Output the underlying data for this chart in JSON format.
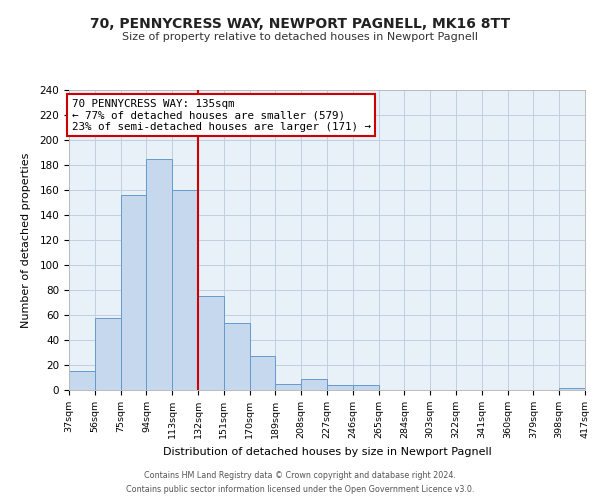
{
  "title": "70, PENNYCRESS WAY, NEWPORT PAGNELL, MK16 8TT",
  "subtitle": "Size of property relative to detached houses in Newport Pagnell",
  "xlabel": "Distribution of detached houses by size in Newport Pagnell",
  "ylabel": "Number of detached properties",
  "bar_edges": [
    37,
    56,
    75,
    94,
    113,
    132,
    151,
    170,
    189,
    208,
    227,
    246,
    265,
    284,
    303,
    322,
    341,
    360,
    379,
    398,
    417
  ],
  "bar_heights": [
    15,
    58,
    156,
    185,
    160,
    75,
    54,
    27,
    5,
    9,
    4,
    4,
    0,
    0,
    0,
    0,
    0,
    0,
    0,
    2
  ],
  "bar_color": "#c5d8ee",
  "bar_edge_color": "#6699cc",
  "vline_x": 132,
  "vline_color": "#cc0000",
  "annotation_line1": "70 PENNYCRESS WAY: 135sqm",
  "annotation_line2": "← 77% of detached houses are smaller (579)",
  "annotation_line3": "23% of semi-detached houses are larger (171) →",
  "annotation_box_color": "#ffffff",
  "annotation_box_edge": "#cc0000",
  "ylim": [
    0,
    240
  ],
  "yticks": [
    0,
    20,
    40,
    60,
    80,
    100,
    120,
    140,
    160,
    180,
    200,
    220,
    240
  ],
  "tick_labels": [
    "37sqm",
    "56sqm",
    "75sqm",
    "94sqm",
    "113sqm",
    "132sqm",
    "151sqm",
    "170sqm",
    "189sqm",
    "208sqm",
    "227sqm",
    "246sqm",
    "265sqm",
    "284sqm",
    "303sqm",
    "322sqm",
    "341sqm",
    "360sqm",
    "379sqm",
    "398sqm",
    "417sqm"
  ],
  "footer_line1": "Contains HM Land Registry data © Crown copyright and database right 2024.",
  "footer_line2": "Contains public sector information licensed under the Open Government Licence v3.0.",
  "grid_color": "#c0d0e0",
  "background_color": "#e8f0f8"
}
